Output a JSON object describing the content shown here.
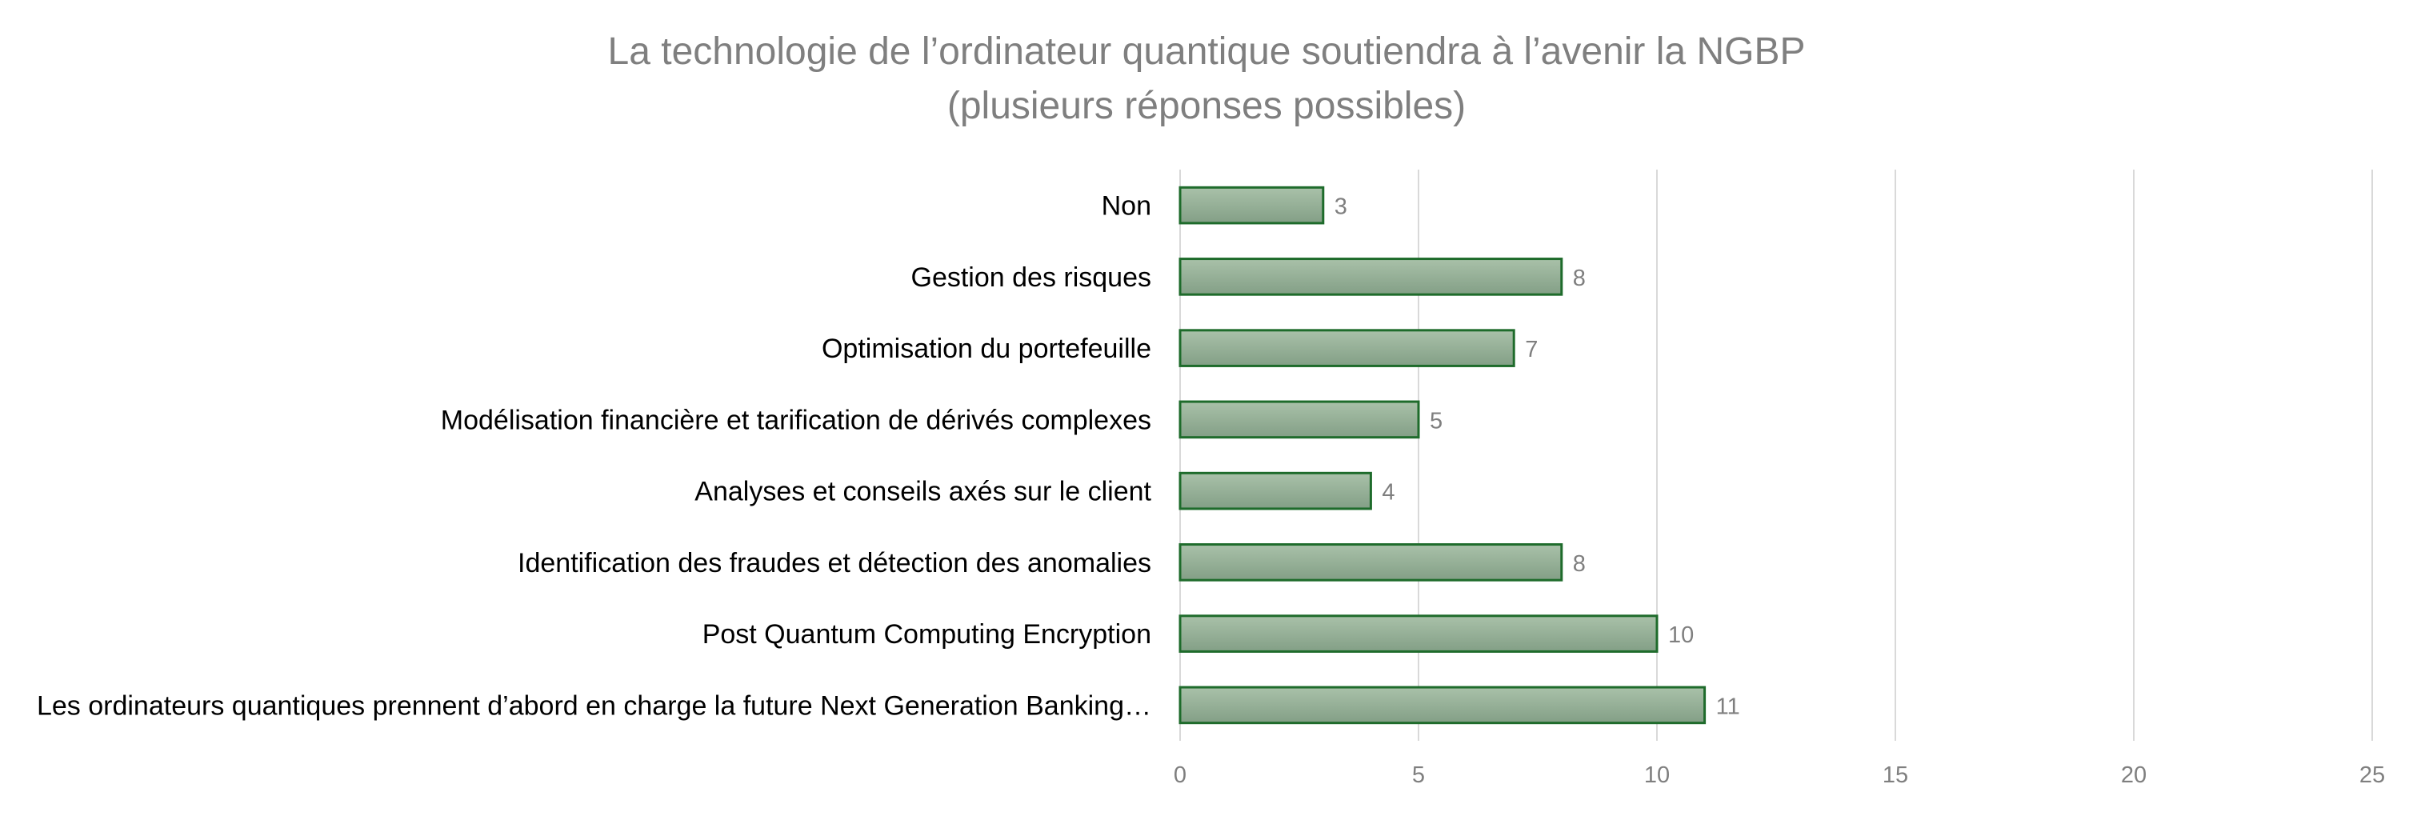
{
  "chart_data": {
    "type": "bar",
    "orientation": "horizontal",
    "title": "La technologie de l’ordinateur quantique soutiendra à l’avenir la NGBP",
    "subtitle": "(plusieurs réponses possibles)",
    "categories": [
      "Non",
      "Gestion des risques",
      "Optimisation du portefeuille",
      "Modélisation financière et tarification de dérivés complexes",
      "Analyses et conseils axés sur le client",
      "Identification des fraudes et détection des anomalies",
      "Post Quantum Computing Encryption",
      "Les ordinateurs quantiques prennent d’abord en charge la future Next Generation Banking…"
    ],
    "values": [
      3,
      8,
      7,
      5,
      4,
      8,
      10,
      11
    ],
    "data_labels": [
      "3",
      "8",
      "7",
      "5",
      "4",
      "8",
      "10",
      "11"
    ],
    "xlim": [
      0,
      25
    ],
    "xticks": [
      "0",
      "5",
      "10",
      "15",
      "20",
      "25"
    ],
    "grid": true,
    "legend": "none",
    "colors": {
      "bar_fill_top": "#a9c1a9",
      "bar_fill_bottom": "#839f86",
      "bar_stroke": "#1e6b2b",
      "grid": "#d9d9d9",
      "text_muted": "#7f7f7f"
    }
  }
}
